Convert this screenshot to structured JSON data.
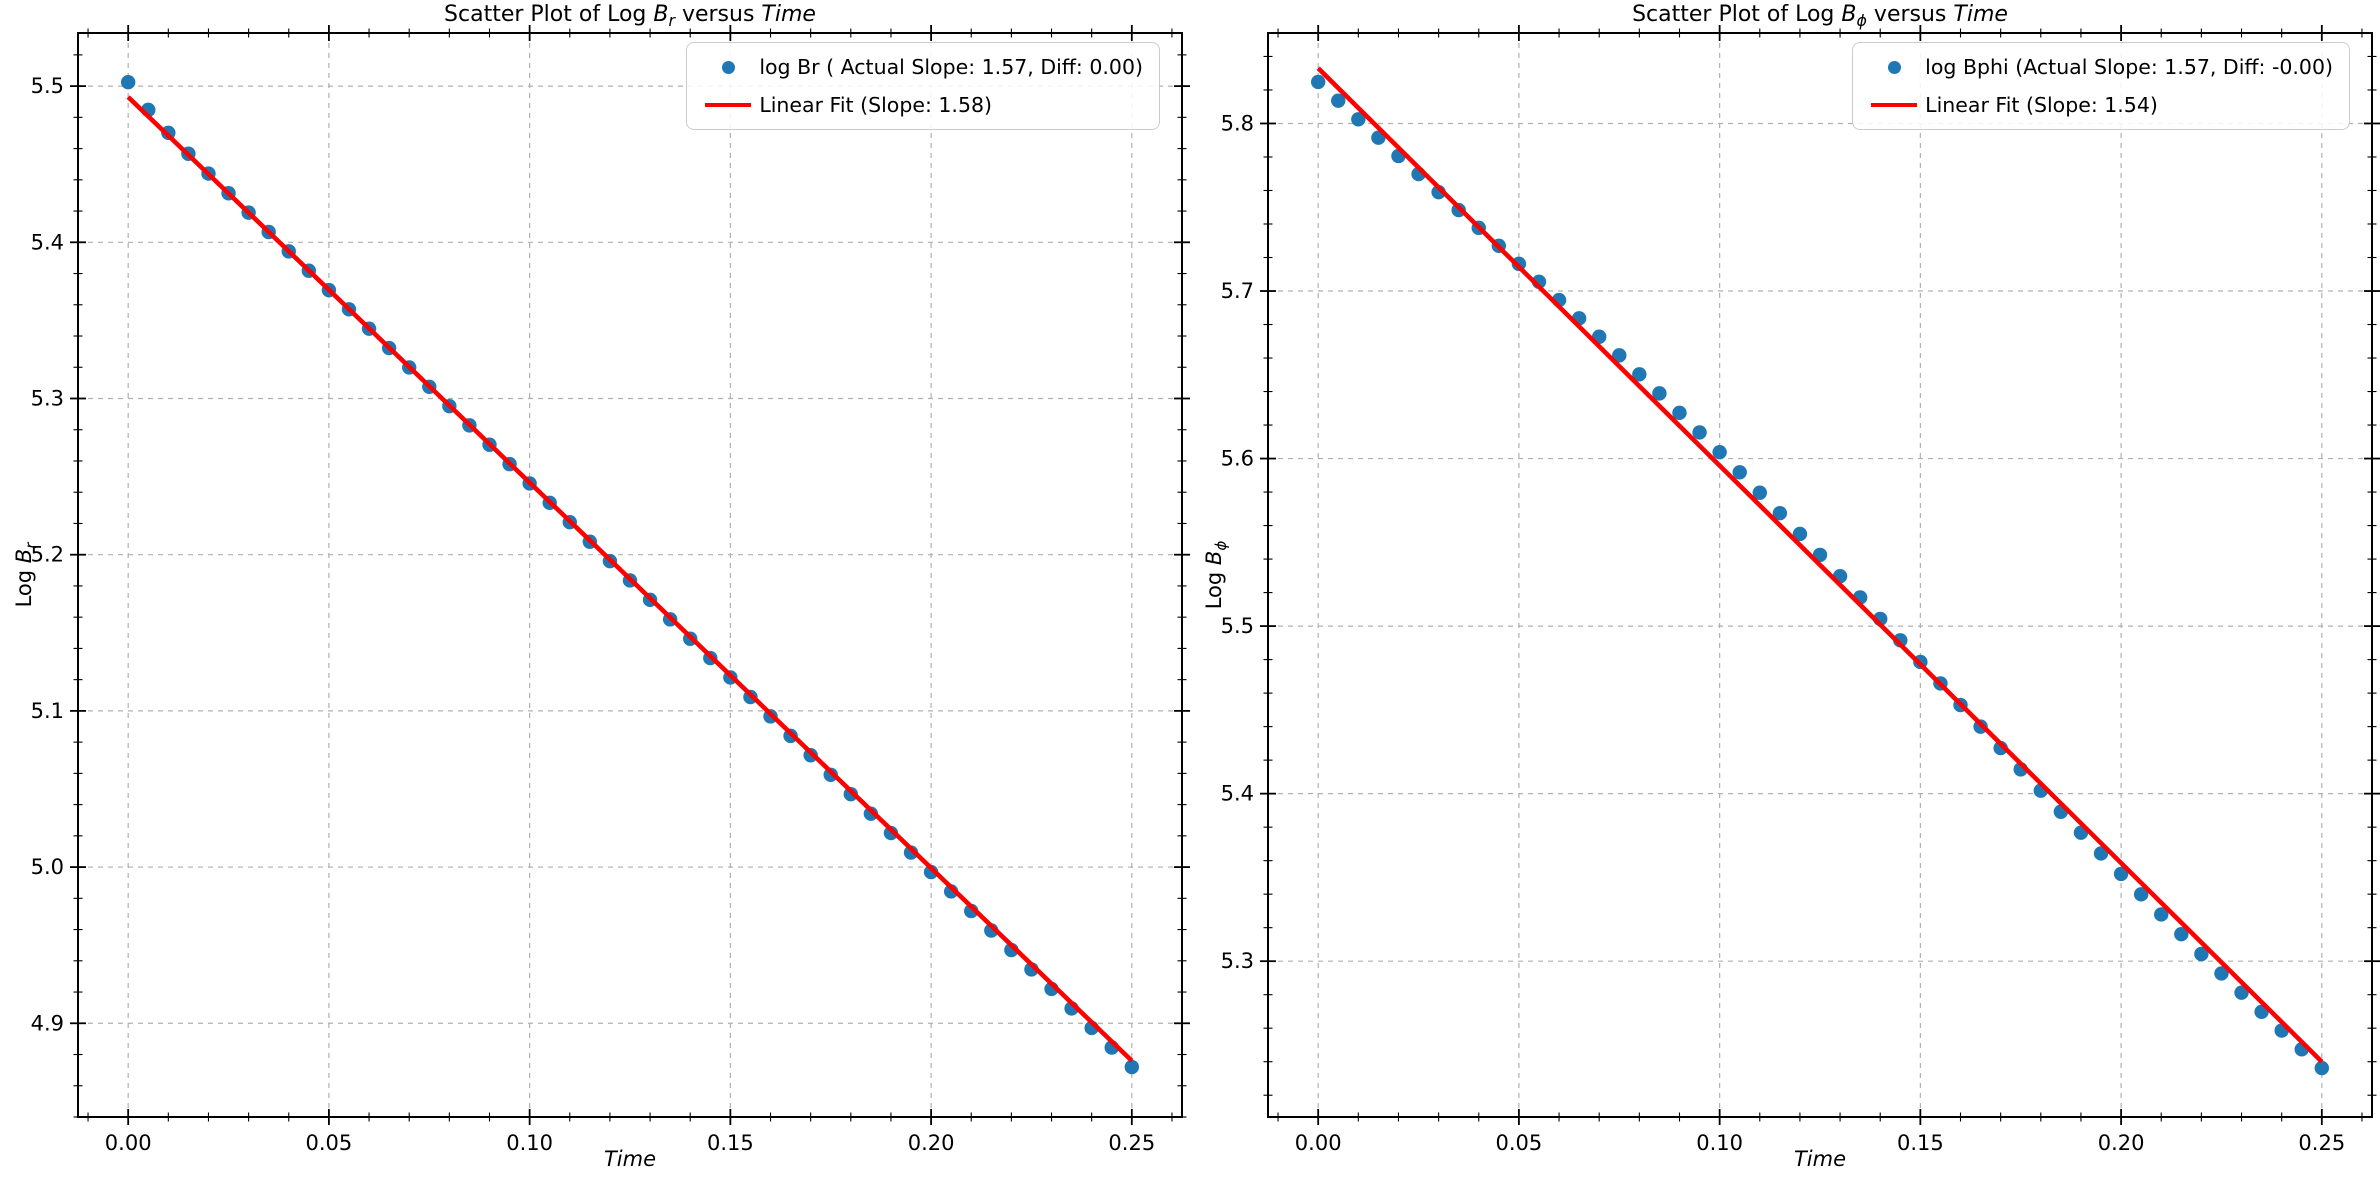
{
  "figure": {
    "background": "#ffffff"
  },
  "chart_data": [
    {
      "type": "scatter",
      "title": {
        "pre": "Scatter Plot of Log ",
        "var": "B",
        "sub": "r",
        "mid": " versus ",
        "xvar": "Time"
      },
      "xlabel": "Time",
      "ylabel": {
        "pre": "Log ",
        "var": "B",
        "sub": "r"
      },
      "grid": true,
      "legend_position": "upper right",
      "xlim": [
        -0.0125,
        0.2625
      ],
      "ylim": [
        4.84,
        5.534
      ],
      "xticks": [
        0.0,
        0.05,
        0.1,
        0.15,
        0.2,
        0.25
      ],
      "xticklabels": [
        "0.00",
        "0.05",
        "0.10",
        "0.15",
        "0.20",
        "0.25"
      ],
      "yticks": [
        4.9,
        5.0,
        5.1,
        5.2,
        5.3,
        5.4,
        5.5
      ],
      "yticklabels": [
        "4.9",
        "5.0",
        "5.1",
        "5.2",
        "5.3",
        "5.4",
        "5.5"
      ],
      "x_minor_step": 0.01,
      "y_minor_step": 0.02,
      "legend": {
        "entries": [
          {
            "kind": "marker",
            "color": "#1f77b4",
            "label": "log Br ( Actual Slope: 1.57, Diff: 0.00)"
          },
          {
            "kind": "line",
            "color": "#ff0000",
            "label": "Linear Fit (Slope: 1.58)"
          }
        ]
      },
      "series": [
        {
          "name": "log Br",
          "kind": "scatter",
          "color": "#1f77b4",
          "x": [
            0.0,
            0.005,
            0.01,
            0.015,
            0.02,
            0.025,
            0.03,
            0.035,
            0.04,
            0.045,
            0.05,
            0.055,
            0.06,
            0.065,
            0.07,
            0.075,
            0.08,
            0.085,
            0.09,
            0.095,
            0.1,
            0.105,
            0.11,
            0.115,
            0.12,
            0.125,
            0.13,
            0.135,
            0.14,
            0.145,
            0.15,
            0.155,
            0.16,
            0.165,
            0.17,
            0.175,
            0.18,
            0.185,
            0.19,
            0.195,
            0.2,
            0.205,
            0.21,
            0.215,
            0.22,
            0.225,
            0.23,
            0.235,
            0.24,
            0.245,
            0.25
          ],
          "y": [
            5.5025,
            5.4848,
            5.4701,
            5.4567,
            5.444,
            5.4314,
            5.419,
            5.4066,
            5.3942,
            5.3818,
            5.3694,
            5.3571,
            5.3447,
            5.3323,
            5.3199,
            5.3075,
            5.2951,
            5.2828,
            5.2704,
            5.258,
            5.2456,
            5.2332,
            5.2208,
            5.2083,
            5.1959,
            5.1835,
            5.1711,
            5.1586,
            5.1462,
            5.1338,
            5.1214,
            5.1089,
            5.0965,
            5.084,
            5.0716,
            5.0591,
            5.0467,
            5.0342,
            5.0218,
            5.0093,
            4.9968,
            4.9844,
            4.9719,
            4.9594,
            4.9469,
            4.9345,
            4.922,
            4.9095,
            4.897,
            4.8845,
            4.872
          ]
        },
        {
          "name": "Linear Fit",
          "kind": "line",
          "color": "#ff0000",
          "x": [
            0.0,
            0.25
          ],
          "y": [
            5.493,
            4.876
          ]
        }
      ]
    },
    {
      "type": "scatter",
      "title": {
        "pre": "Scatter Plot of Log ",
        "var": "B",
        "sub": "ϕ",
        "mid": " versus ",
        "xvar": "Time"
      },
      "xlabel": "Time",
      "ylabel": {
        "pre": "Log ",
        "var": "B",
        "sub": "ϕ"
      },
      "grid": true,
      "legend_position": "upper right",
      "xlim": [
        -0.0125,
        0.2625
      ],
      "ylim": [
        5.207,
        5.854
      ],
      "xticks": [
        0.0,
        0.05,
        0.1,
        0.15,
        0.2,
        0.25
      ],
      "xticklabels": [
        "0.00",
        "0.05",
        "0.10",
        "0.15",
        "0.20",
        "0.25"
      ],
      "yticks": [
        5.3,
        5.4,
        5.5,
        5.6,
        5.7,
        5.8
      ],
      "yticklabels": [
        "5.3",
        "5.4",
        "5.5",
        "5.6",
        "5.7",
        "5.8"
      ],
      "x_minor_step": 0.01,
      "y_minor_step": 0.02,
      "legend": {
        "entries": [
          {
            "kind": "marker",
            "color": "#1f77b4",
            "label": "log Bphi (Actual Slope: 1.57, Diff: -0.00)"
          },
          {
            "kind": "line",
            "color": "#ff0000",
            "label": "Linear Fit (Slope: 1.54)"
          }
        ]
      },
      "series": [
        {
          "name": "log Bphi",
          "kind": "scatter",
          "color": "#1f77b4",
          "x": [
            0.0,
            0.005,
            0.01,
            0.015,
            0.02,
            0.025,
            0.03,
            0.035,
            0.04,
            0.045,
            0.05,
            0.055,
            0.06,
            0.065,
            0.07,
            0.075,
            0.08,
            0.085,
            0.09,
            0.095,
            0.1,
            0.105,
            0.11,
            0.115,
            0.12,
            0.125,
            0.13,
            0.135,
            0.14,
            0.145,
            0.15,
            0.155,
            0.16,
            0.165,
            0.17,
            0.175,
            0.18,
            0.185,
            0.19,
            0.195,
            0.2,
            0.205,
            0.21,
            0.215,
            0.22,
            0.225,
            0.23,
            0.235,
            0.24,
            0.245,
            0.25
          ],
          "y": [
            5.8248,
            5.8136,
            5.8025,
            5.7915,
            5.7806,
            5.7698,
            5.759,
            5.7483,
            5.7377,
            5.727,
            5.7162,
            5.7055,
            5.6946,
            5.6837,
            5.6727,
            5.6616,
            5.6503,
            5.6389,
            5.6273,
            5.6156,
            5.6038,
            5.5918,
            5.5796,
            5.5674,
            5.555,
            5.5425,
            5.5298,
            5.5171,
            5.5043,
            5.4915,
            5.4786,
            5.4658,
            5.4529,
            5.44,
            5.4272,
            5.4145,
            5.4018,
            5.3892,
            5.3767,
            5.3643,
            5.3521,
            5.3399,
            5.3279,
            5.3161,
            5.3043,
            5.2927,
            5.2812,
            5.2698,
            5.2586,
            5.2474,
            5.2362
          ]
        },
        {
          "name": "Linear Fit",
          "kind": "line",
          "color": "#ff0000",
          "x": [
            0.0,
            0.25
          ],
          "y": [
            5.833,
            5.24
          ]
        }
      ]
    }
  ]
}
